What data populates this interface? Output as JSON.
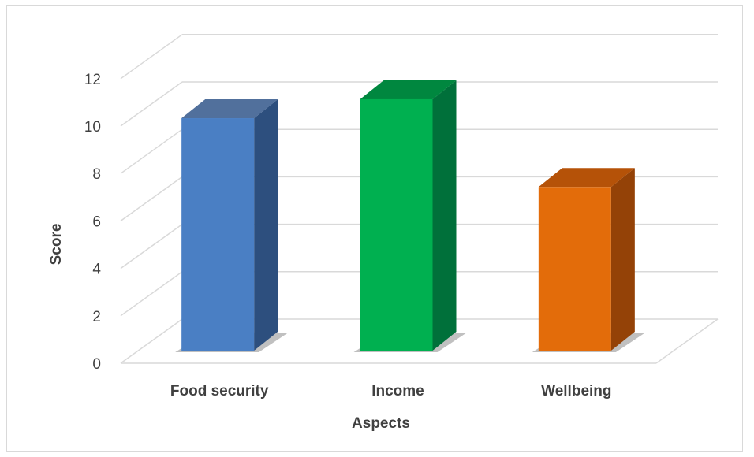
{
  "chart_data": {
    "type": "bar",
    "style": "3d-column",
    "categories": [
      "Food security",
      "Income",
      "Wellbeing"
    ],
    "values": [
      9.8,
      10.6,
      6.9
    ],
    "colors": {
      "front": [
        "#4a7fc4",
        "#00b050",
        "#e36c0a"
      ],
      "side": [
        "#2d4f7e",
        "#00703a",
        "#944207"
      ],
      "top": [
        "#51709c",
        "#00873f",
        "#b55208"
      ]
    },
    "xlabel": "Aspects",
    "ylabel": "Score",
    "ylim": [
      0,
      12
    ],
    "yticks": [
      0,
      2,
      4,
      6,
      8,
      10,
      12
    ],
    "grid": true,
    "legend": "none"
  }
}
